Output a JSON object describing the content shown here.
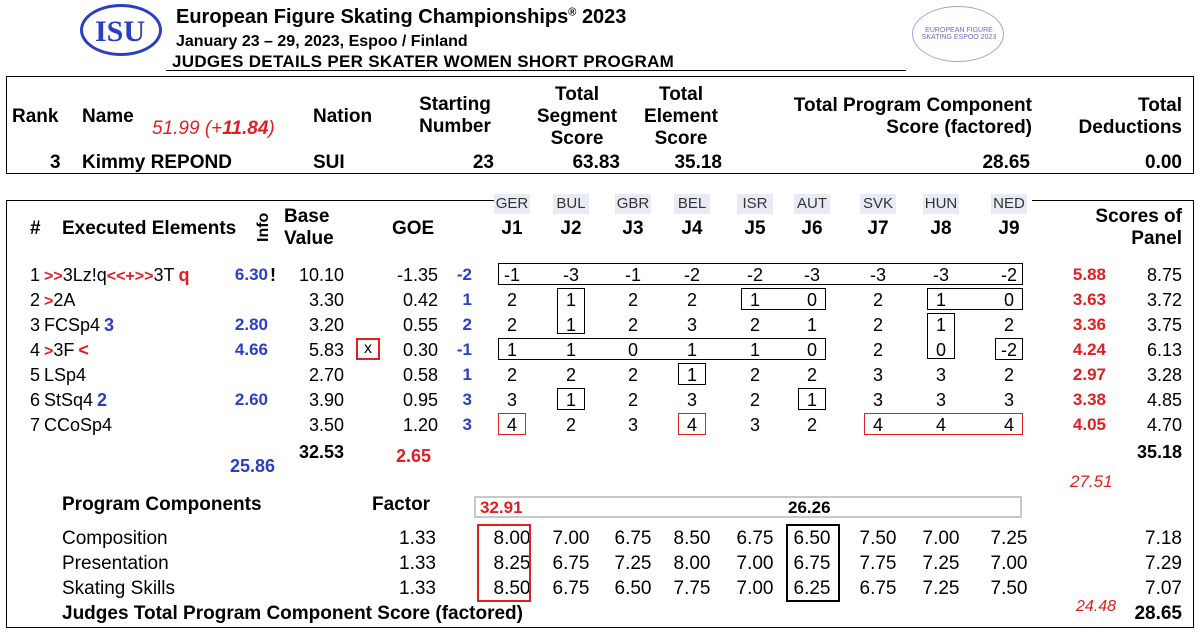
{
  "header": {
    "logo_text": "ISU",
    "event_title": "European Figure Skating Championships",
    "event_year": "2023",
    "event_dates": "January 23 – 29, 2023, Espoo / Finland",
    "subtitle": "JUDGES DETAILS PER SKATER   WOMEN SHORT PROGRAM",
    "seal_text": "EUROPEAN FIGURE SKATING ESPOO 2023"
  },
  "summary": {
    "labels": {
      "rank": "Rank",
      "name": "Name",
      "nation": "Nation",
      "starting_number": "Starting Number",
      "segment_score": "Total Segment Score",
      "element_score": "Total Element Score",
      "pcs": "Total Program Component Score (factored)",
      "deductions": "Total Deductions"
    },
    "annotation_score": "51.99",
    "annotation_delta_open": "(+",
    "annotation_delta": "11.84",
    "annotation_delta_close": ")",
    "rank": "3",
    "name": "Kimmy REPOND",
    "nation": "SUI",
    "starting_number": "23",
    "segment_score": "63.83",
    "element_score": "35.18",
    "pcs": "28.65",
    "deductions": "0.00"
  },
  "elements_header": {
    "num": "#",
    "executed": "Executed Elements",
    "info": "Info",
    "base_value": "Base Value",
    "goe": "GOE",
    "scores_of_panel": "Scores of Panel"
  },
  "judges": [
    {
      "code": "GER",
      "label": "J1"
    },
    {
      "code": "BUL",
      "label": "J2"
    },
    {
      "code": "GBR",
      "label": "J3"
    },
    {
      "code": "BEL",
      "label": "J4"
    },
    {
      "code": "ISR",
      "label": "J5"
    },
    {
      "code": "AUT",
      "label": "J6"
    },
    {
      "code": "SVK",
      "label": "J7"
    },
    {
      "code": "HUN",
      "label": "J8"
    },
    {
      "code": "NED",
      "label": "J9"
    }
  ],
  "elements": [
    {
      "num": "1",
      "pre": ">>",
      "name": "3Lz!q",
      "mid": "<<+",
      "mid2": ">>",
      "name2": "3T",
      "suffix": "q",
      "annot_value": "6.30",
      "info": "!",
      "base": "10.10",
      "x": "",
      "goe": "-1.35",
      "goe_note": "-2",
      "scores": [
        "-1",
        "-3",
        "-1",
        "-2",
        "-2",
        "-3",
        "-3",
        "-3",
        "-2"
      ],
      "annot_total": "5.88",
      "panel": "8.75"
    },
    {
      "num": "2",
      "pre": ">",
      "name": "2A",
      "mid": "",
      "mid2": "",
      "name2": "",
      "suffix": "",
      "annot_value": "",
      "info": "",
      "base": "3.30",
      "x": "",
      "goe": "0.42",
      "goe_note": "1",
      "scores": [
        "2",
        "1",
        "2",
        "2",
        "1",
        "0",
        "2",
        "1",
        "0"
      ],
      "annot_total": "3.63",
      "panel": "3.72"
    },
    {
      "num": "3",
      "pre": "",
      "name": "FCSp4",
      "mid": "",
      "mid2": "",
      "name2": "",
      "suffix": "3",
      "annot_value": "2.80",
      "info": "",
      "base": "3.20",
      "x": "",
      "goe": "0.55",
      "goe_note": "2",
      "scores": [
        "2",
        "1",
        "2",
        "3",
        "2",
        "1",
        "2",
        "1",
        "2"
      ],
      "annot_total": "3.36",
      "panel": "3.75"
    },
    {
      "num": "4",
      "pre": ">",
      "name": "3F",
      "mid": "",
      "mid2": "",
      "name2": "",
      "suffix": "<",
      "annot_value": "4.66",
      "info": "",
      "base": "5.83",
      "x": "x",
      "goe": "0.30",
      "goe_note": "-1",
      "scores": [
        "1",
        "1",
        "0",
        "1",
        "1",
        "0",
        "2",
        "0",
        "-2"
      ],
      "annot_total": "4.24",
      "panel": "6.13"
    },
    {
      "num": "5",
      "pre": "",
      "name": "LSp4",
      "mid": "",
      "mid2": "",
      "name2": "",
      "suffix": "",
      "annot_value": "",
      "info": "",
      "base": "2.70",
      "x": "",
      "goe": "0.58",
      "goe_note": "1",
      "scores": [
        "2",
        "2",
        "2",
        "1",
        "2",
        "2",
        "3",
        "3",
        "2"
      ],
      "annot_total": "2.97",
      "panel": "3.28"
    },
    {
      "num": "6",
      "pre": "",
      "name": "StSq4",
      "mid": "",
      "mid2": "",
      "name2": "",
      "suffix": "2",
      "annot_value": "2.60",
      "info": "",
      "base": "3.90",
      "x": "",
      "goe": "0.95",
      "goe_note": "3",
      "scores": [
        "3",
        "1",
        "2",
        "3",
        "2",
        "1",
        "3",
        "3",
        "3"
      ],
      "annot_total": "3.38",
      "panel": "4.85"
    },
    {
      "num": "7",
      "pre": "",
      "name": "CCoSp4",
      "mid": "",
      "mid2": "",
      "name2": "",
      "suffix": "",
      "annot_value": "",
      "info": "",
      "base": "3.50",
      "x": "",
      "goe": "1.20",
      "goe_note": "3",
      "scores": [
        "4",
        "2",
        "3",
        "4",
        "3",
        "2",
        "4",
        "4",
        "4"
      ],
      "annot_total": "4.05",
      "panel": "4.70"
    }
  ],
  "element_totals": {
    "base": "32.53",
    "goe_annot": "2.65",
    "annot_base": "25.86",
    "panel": "35.18",
    "annot_panel": "27.51"
  },
  "components_header": {
    "label": "Program Components",
    "factor": "Factor",
    "annot_high": "32.91",
    "annot_low": "26.26"
  },
  "components": [
    {
      "name": "Composition",
      "factor": "1.33",
      "scores": [
        "8.00",
        "7.00",
        "6.75",
        "8.50",
        "6.75",
        "6.50",
        "7.50",
        "7.00",
        "7.25"
      ],
      "panel": "7.18"
    },
    {
      "name": "Presentation",
      "factor": "1.33",
      "scores": [
        "8.25",
        "6.75",
        "7.25",
        "8.00",
        "7.00",
        "6.75",
        "7.75",
        "7.25",
        "7.00"
      ],
      "panel": "7.29"
    },
    {
      "name": "Skating Skills",
      "factor": "1.33",
      "scores": [
        "8.50",
        "6.75",
        "6.50",
        "7.75",
        "7.00",
        "6.25",
        "6.75",
        "7.25",
        "7.50"
      ],
      "panel": "7.07"
    }
  ],
  "pcs_total": {
    "label": "Judges Total Program Component Score (factored)",
    "annot": "24.48",
    "value": "28.65"
  }
}
